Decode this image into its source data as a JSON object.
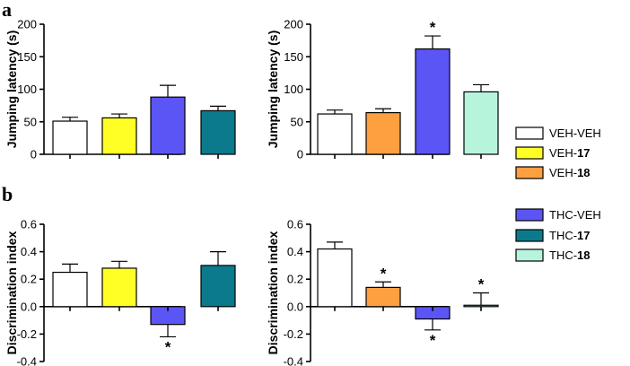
{
  "panel_labels": [
    "a",
    "b"
  ],
  "legend": [
    {
      "prefix": "VEH-",
      "suffix": "VEH",
      "bold_suffix": false,
      "color": "#ffffff"
    },
    {
      "prefix": "VEH-",
      "suffix": "17",
      "bold_suffix": true,
      "color": "#ffff26"
    },
    {
      "prefix": "VEH-",
      "suffix": "18",
      "bold_suffix": true,
      "color": "#ffa040"
    },
    {
      "prefix": "THC-",
      "suffix": "VEH",
      "bold_suffix": false,
      "color": "#5b55f5"
    },
    {
      "prefix": "THC-",
      "suffix": "17",
      "bold_suffix": true,
      "color": "#0b7a8c"
    },
    {
      "prefix": "THC-",
      "suffix": "18",
      "bold_suffix": true,
      "color": "#b6f5dc"
    }
  ],
  "chart_data": [
    {
      "type": "bar",
      "panel": "a",
      "ylabel": "Jumping latency (s)",
      "ylim": [
        0,
        200
      ],
      "yticks": [
        0,
        50,
        100,
        150,
        200
      ],
      "categories": [
        "VEH-VEH",
        "VEH-17",
        "THC-VEH",
        "THC-17"
      ],
      "values": [
        51,
        56,
        88,
        67
      ],
      "errors": [
        6,
        6,
        18,
        7
      ],
      "colors": [
        "#ffffff",
        "#ffff26",
        "#5b55f5",
        "#0b7a8c"
      ],
      "significance": [
        "",
        "",
        "",
        ""
      ]
    },
    {
      "type": "bar",
      "panel": "a",
      "ylabel": "Jumping latency (s)",
      "ylim": [
        0,
        200
      ],
      "yticks": [
        0,
        50,
        100,
        150,
        200
      ],
      "categories": [
        "VEH-VEH",
        "VEH-18",
        "THC-VEH",
        "THC-18"
      ],
      "values": [
        62,
        64,
        162,
        96
      ],
      "errors": [
        6,
        6,
        20,
        11
      ],
      "colors": [
        "#ffffff",
        "#ffa040",
        "#5b55f5",
        "#b6f5dc"
      ],
      "significance": [
        "",
        "",
        "*",
        ""
      ]
    },
    {
      "type": "bar",
      "panel": "b",
      "ylabel": "Discrimination index",
      "ylim": [
        -0.4,
        0.6
      ],
      "yticks": [
        -0.4,
        -0.2,
        0.0,
        0.2,
        0.4,
        0.6
      ],
      "categories": [
        "VEH-VEH",
        "VEH-17",
        "THC-VEH",
        "THC-17"
      ],
      "values": [
        0.25,
        0.28,
        -0.13,
        0.3
      ],
      "errors": [
        0.06,
        0.05,
        0.09,
        0.1
      ],
      "colors": [
        "#ffffff",
        "#ffff26",
        "#5b55f5",
        "#0b7a8c"
      ],
      "significance": [
        "",
        "",
        "*",
        ""
      ]
    },
    {
      "type": "bar",
      "panel": "b",
      "ylabel": "Discrimination index",
      "ylim": [
        -0.4,
        0.6
      ],
      "yticks": [
        -0.4,
        -0.2,
        0.0,
        0.2,
        0.4,
        0.6
      ],
      "categories": [
        "VEH-VEH",
        "VEH-18",
        "THC-VEH",
        "THC-18"
      ],
      "values": [
        0.42,
        0.14,
        -0.09,
        0.01
      ],
      "errors": [
        0.05,
        0.04,
        0.08,
        0.09
      ],
      "colors": [
        "#ffffff",
        "#ffa040",
        "#5b55f5",
        "#b6f5dc"
      ],
      "significance": [
        "",
        "*",
        "*",
        "*"
      ]
    }
  ]
}
